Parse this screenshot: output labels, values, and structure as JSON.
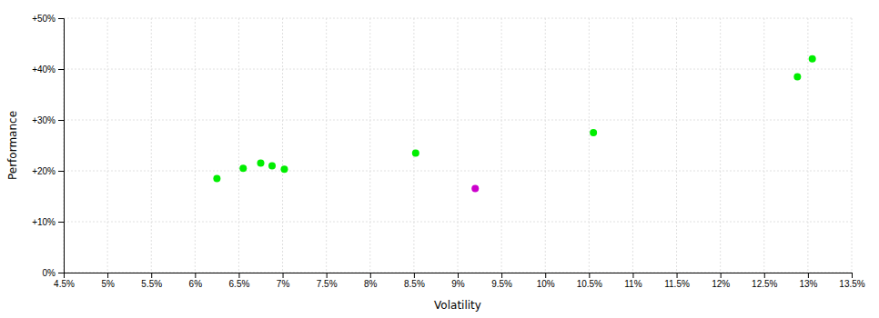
{
  "chart_data": {
    "type": "scatter",
    "xlabel": "Volatility",
    "ylabel": "Performance",
    "x": [
      6.25,
      6.55,
      6.75,
      6.88,
      7.02,
      8.52,
      9.2,
      10.55,
      12.88,
      13.05
    ],
    "values": [
      18.5,
      20.5,
      21.5,
      21.0,
      20.3,
      23.5,
      16.5,
      27.5,
      38.5,
      42.0
    ],
    "colors": [
      "#00ee00",
      "#00ee00",
      "#00ee00",
      "#00ee00",
      "#00ee00",
      "#00ee00",
      "#cc00cc",
      "#00ee00",
      "#00ee00",
      "#00ee00"
    ],
    "xlim": [
      4.5,
      13.5
    ],
    "ylim": [
      0,
      50
    ],
    "xticks": [
      {
        "value": 4.5,
        "label": "4.5%"
      },
      {
        "value": 5.0,
        "label": "5%"
      },
      {
        "value": 5.5,
        "label": "5.5%"
      },
      {
        "value": 6.0,
        "label": "6%"
      },
      {
        "value": 6.5,
        "label": "6.5%"
      },
      {
        "value": 7.0,
        "label": "7%"
      },
      {
        "value": 7.5,
        "label": "7.5%"
      },
      {
        "value": 8.0,
        "label": "8%"
      },
      {
        "value": 8.5,
        "label": "8.5%"
      },
      {
        "value": 9.0,
        "label": "9%"
      },
      {
        "value": 9.5,
        "label": "9.5%"
      },
      {
        "value": 10.0,
        "label": "10%"
      },
      {
        "value": 10.5,
        "label": "10.5%"
      },
      {
        "value": 11.0,
        "label": "11%"
      },
      {
        "value": 11.5,
        "label": "11.5%"
      },
      {
        "value": 12.0,
        "label": "12%"
      },
      {
        "value": 12.5,
        "label": "12.5%"
      },
      {
        "value": 13.0,
        "label": "13%"
      },
      {
        "value": 13.5,
        "label": "13.5%"
      }
    ],
    "yticks": [
      {
        "value": 0,
        "label": "0%"
      },
      {
        "value": 10,
        "label": "+10%"
      },
      {
        "value": 20,
        "label": "+20%"
      },
      {
        "value": 30,
        "label": "+30%"
      },
      {
        "value": 40,
        "label": "+40%"
      },
      {
        "value": 50,
        "label": "+50%"
      }
    ],
    "grid": true
  }
}
